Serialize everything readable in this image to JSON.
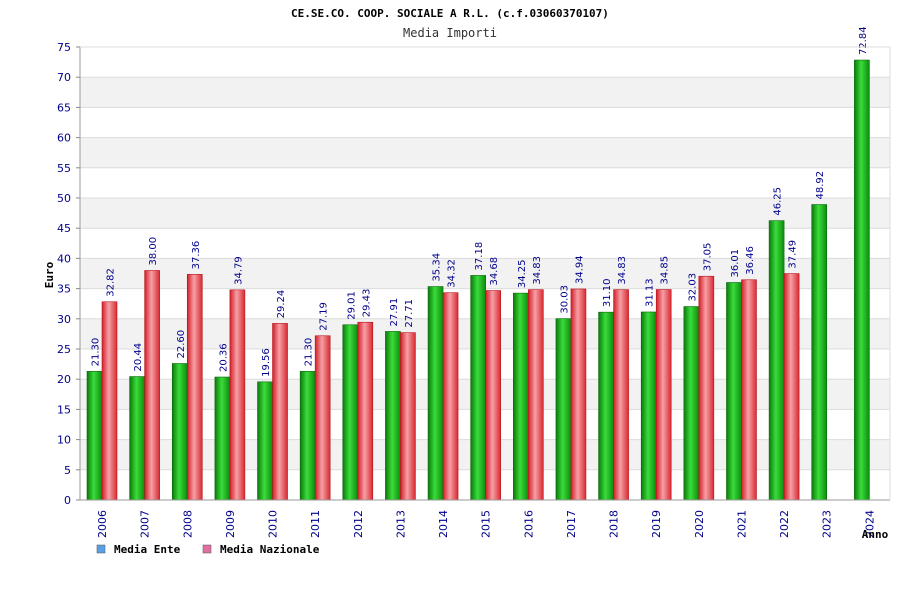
{
  "chart_data": {
    "type": "bar",
    "title": "CE.SE.CO. COOP. SOCIALE A R.L. (c.f.03060370107)",
    "subtitle": "Media Importi",
    "ylabel": "Euro",
    "xlabel": "Anno",
    "ylim": [
      0,
      75
    ],
    "yticks": [
      0,
      5,
      10,
      15,
      20,
      25,
      30,
      35,
      40,
      45,
      50,
      55,
      60,
      65,
      70,
      75
    ],
    "grid": true,
    "legend_position": "bottom-left",
    "categories": [
      "2006",
      "2007",
      "2008",
      "2009",
      "2010",
      "2011",
      "2012",
      "2013",
      "2014",
      "2015",
      "2016",
      "2017",
      "2018",
      "2019",
      "2020",
      "2021",
      "2022",
      "2023",
      "2024"
    ],
    "series": [
      {
        "name": "Media Ente",
        "color": "#1fb51f",
        "legend_color": "#5aa0e6",
        "values": [
          21.3,
          20.44,
          22.6,
          20.36,
          19.56,
          21.3,
          29.01,
          27.91,
          35.34,
          37.18,
          34.25,
          30.03,
          31.1,
          31.13,
          32.03,
          36.01,
          46.25,
          48.92,
          72.84
        ],
        "labels": [
          "21.30",
          "20.44",
          "22.60",
          "20.36",
          "19.56",
          "21.30",
          "29.01",
          "27.91",
          "35.34",
          "37.18",
          "34.25",
          "30.03",
          "31.10",
          "31.13",
          "32.03",
          "36.01",
          "46.25",
          "48.92",
          "72.84"
        ]
      },
      {
        "name": "Media Nazionale",
        "color": "#e8343c",
        "legend_color": "#e070a0",
        "values": [
          32.82,
          38.0,
          37.36,
          34.79,
          29.24,
          27.19,
          29.43,
          27.71,
          34.32,
          34.68,
          34.83,
          34.94,
          34.83,
          34.85,
          37.05,
          36.46,
          37.49,
          null,
          null
        ],
        "labels": [
          "32.82",
          "38.00",
          "37.36",
          "34.79",
          "29.24",
          "27.19",
          "29.43",
          "27.71",
          "34.32",
          "34.68",
          "34.83",
          "34.94",
          "34.83",
          "34.85",
          "37.05",
          "36.46",
          "37.49",
          null,
          null
        ]
      }
    ]
  }
}
